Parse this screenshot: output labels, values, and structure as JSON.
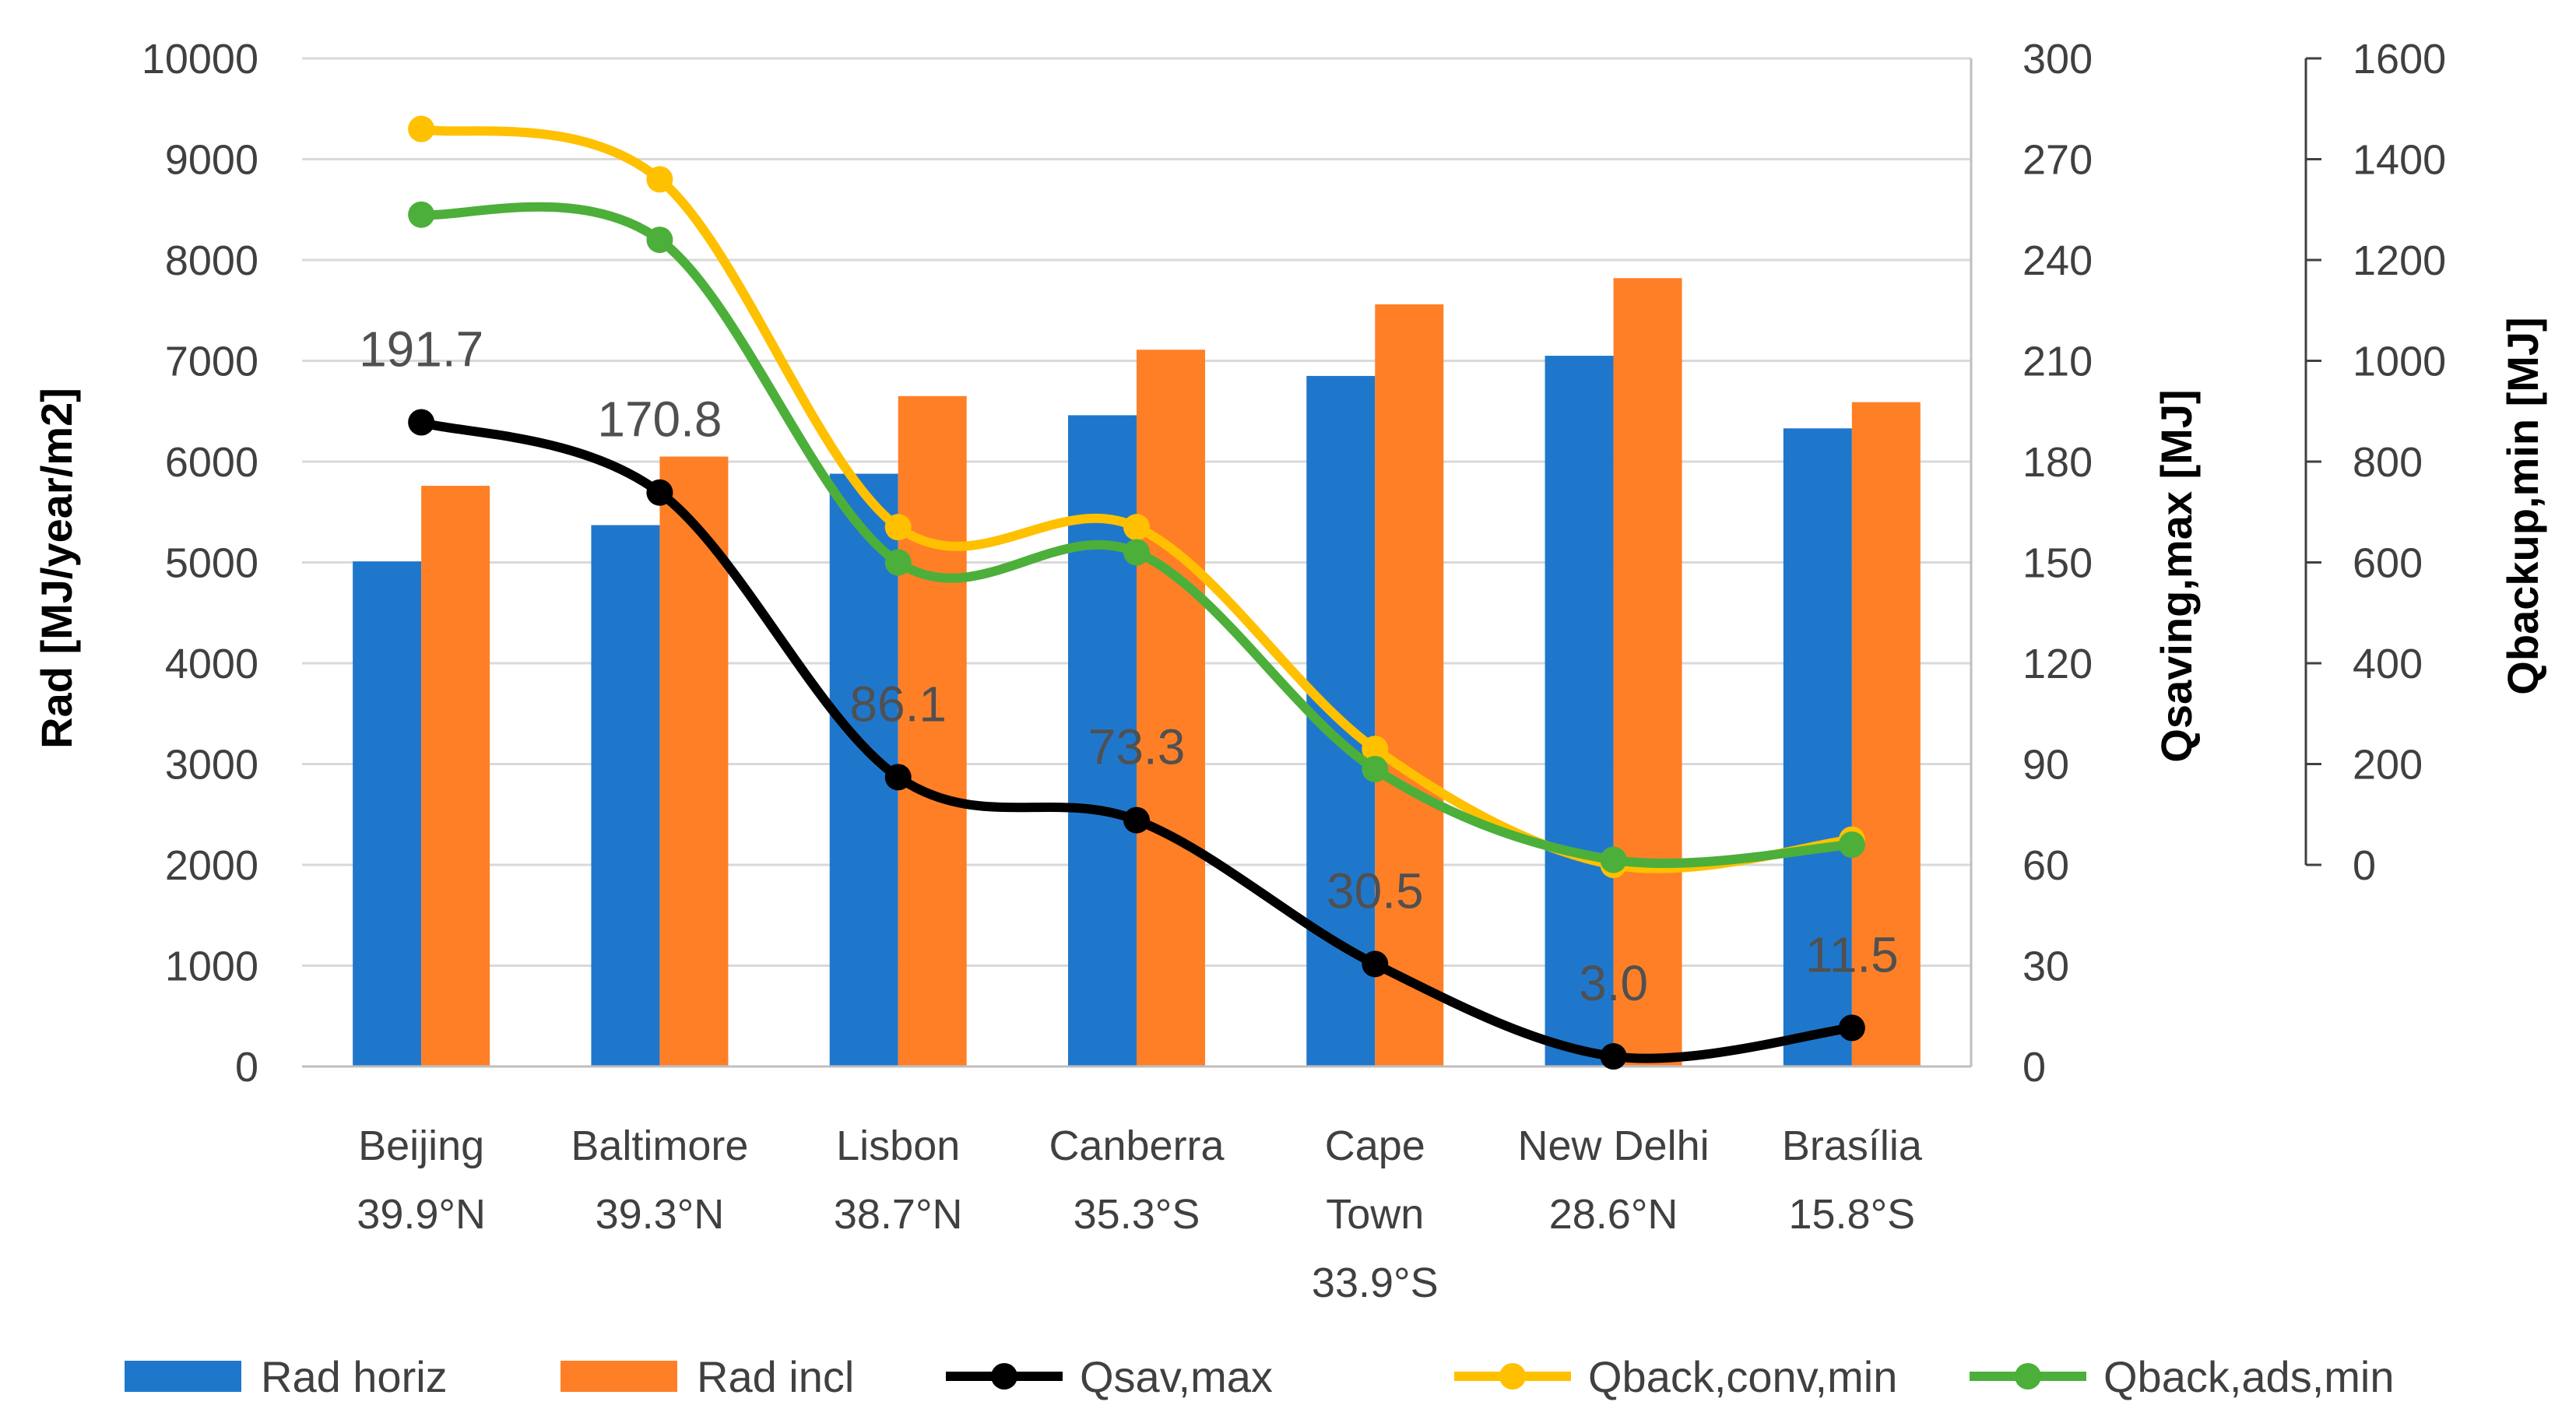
{
  "chart_data": {
    "type": "bar",
    "categories": [
      [
        "Beijing",
        "39.9°N"
      ],
      [
        "Baltimore",
        "39.3°N"
      ],
      [
        "Lisbon",
        "38.7°N"
      ],
      [
        "Canberra",
        "35.3°S"
      ],
      [
        "Cape",
        "Town",
        "33.9°S"
      ],
      [
        "New Delhi",
        "28.6°N"
      ],
      [
        "Brasília",
        "15.8°S"
      ]
    ],
    "bar_series": [
      {
        "name": "Rad horiz",
        "color": "#1f77cc",
        "values": [
          5010,
          5370,
          5880,
          6460,
          6850,
          7050,
          6330
        ]
      },
      {
        "name": "Rad incl",
        "color": "#ff7f27",
        "values": [
          5760,
          6050,
          6650,
          7110,
          7560,
          7820,
          6590
        ]
      }
    ],
    "line_series": [
      {
        "name": "Qsav,max",
        "color": "#000000",
        "axis": "qsaving",
        "values": [
          191.7,
          170.8,
          86.1,
          73.3,
          30.5,
          3.0,
          11.5
        ],
        "labels": [
          "191.7",
          "170.8",
          "86.1",
          "73.3",
          "30.5",
          "3.0",
          "11.5"
        ]
      },
      {
        "name": "Qback,conv,min",
        "color": "#ffc000",
        "axis": "qbackup",
        "values": [
          1460,
          1360,
          670,
          670,
          230,
          0,
          50
        ]
      },
      {
        "name": "Qback,ads,min",
        "color": "#4caf3a",
        "axis": "qbackup",
        "values": [
          1290,
          1240,
          600,
          620,
          190,
          10,
          40
        ]
      }
    ],
    "axes": {
      "rad": {
        "label": "Rad [MJ/year/m2]",
        "ylim": [
          0,
          10000
        ],
        "ticks": [
          "0",
          "1000",
          "2000",
          "3000",
          "4000",
          "5000",
          "6000",
          "7000",
          "8000",
          "9000",
          "10000"
        ]
      },
      "qsaving": {
        "label": "Qsaving,max [MJ]",
        "ylim": [
          0,
          300
        ],
        "ticks": [
          "0",
          "30",
          "60",
          "90",
          "120",
          "150",
          "180",
          "210",
          "240",
          "270",
          "300"
        ]
      },
      "qbackup": {
        "label": "Qbackup,min [MJ]",
        "ylim": [
          0,
          1600
        ],
        "ticks": [
          "0",
          "200",
          "400",
          "600",
          "800",
          "1000",
          "1200",
          "1400",
          "1600"
        ]
      }
    },
    "legend": [
      "Rad horiz",
      "Rad incl",
      "Qsav,max",
      "Qback,conv,min",
      "Qback,ads,min"
    ],
    "legend_position": "bottom",
    "grid": true
  }
}
